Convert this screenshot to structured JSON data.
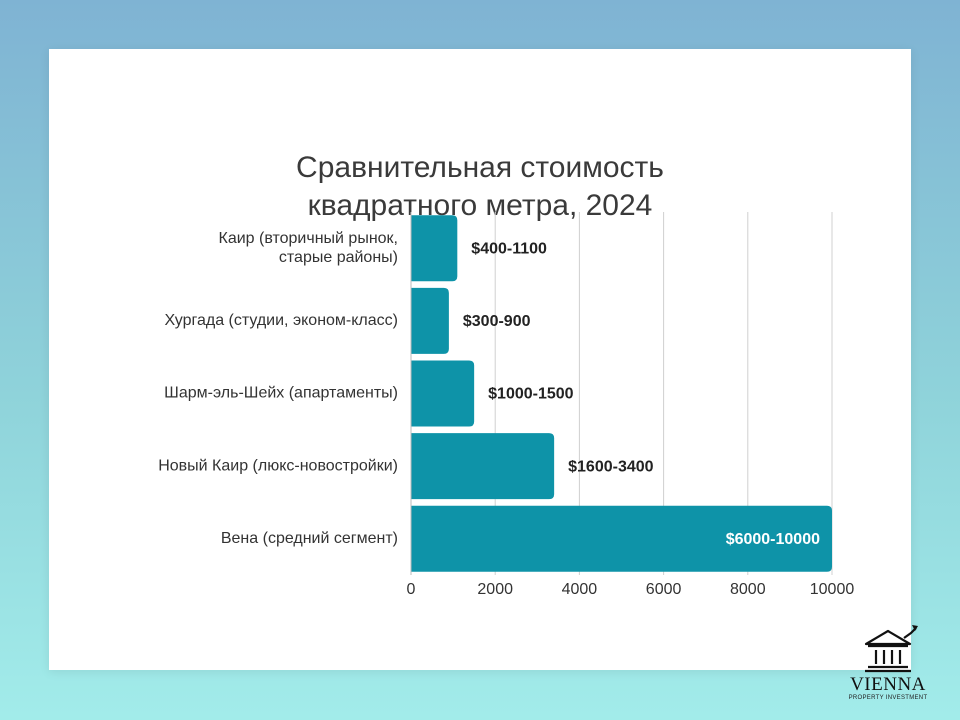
{
  "title_lines": [
    "Сравнительная стоимость",
    "квадратного метра, 2024"
  ],
  "chart_data": {
    "type": "bar",
    "orientation": "horizontal",
    "title": "Сравнительная стоимость квадратного метра, 2024",
    "categories": [
      [
        "Каир (вторичный рынок,",
        "старые районы)"
      ],
      [
        "Хургада (студии, эконом-класс)"
      ],
      [
        "Шарм-эль-Шейх (апартаменты)"
      ],
      [
        "Новый Каир (люкс-новостройки)"
      ],
      [
        "Вена (средний сегмент)"
      ]
    ],
    "values": [
      1100,
      900,
      1500,
      3400,
      10000
    ],
    "data_labels": [
      "$400-1100",
      "$300-900",
      "$1000-1500",
      "$1600-3400",
      "$6000-10000"
    ],
    "xlim": [
      0,
      10000
    ],
    "x_ticks": [
      0,
      2000,
      4000,
      6000,
      8000,
      10000
    ],
    "x_tick_labels": [
      "0",
      "2000",
      "4000",
      "6000",
      "8000",
      "10000"
    ],
    "grid": true,
    "bar_color": "#0e93a8",
    "label_color": "#222222",
    "inside_label_color": "#ffffff",
    "grid_color": "#d0d0d0"
  },
  "logo": {
    "name": "VIENNA",
    "subtitle": "PROPERTY INVESTMENT",
    "icon": "bank-building-arrow-icon"
  }
}
